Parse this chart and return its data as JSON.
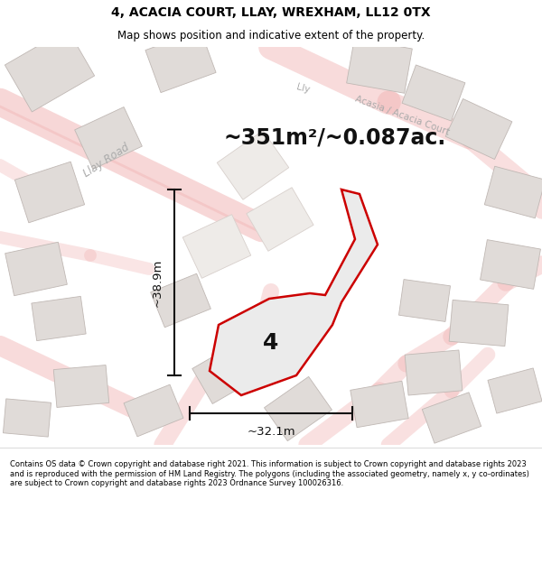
{
  "title_line1": "4, ACACIA COURT, LLAY, WREXHAM, LL12 0TX",
  "title_line2": "Map shows position and indicative extent of the property.",
  "area_text": "~351m²/~0.087ac.",
  "dim_vertical": "~38.9m",
  "dim_horizontal": "~32.1m",
  "plot_label": "4",
  "footer_text": "Contains OS data © Crown copyright and database right 2021. This information is subject to Crown copyright and database rights 2023 and is reproduced with the permission of HM Land Registry. The polygons (including the associated geometry, namely x, y co-ordinates) are subject to Crown copyright and database rights 2023 Ordnance Survey 100026316.",
  "header_bg": "#ffffff",
  "footer_bg": "#ffffff",
  "map_bg": "#f9f7f5",
  "plot_color": "#cc0000",
  "plot_fill": "#ebebeb",
  "road_color": "#f0b0b0",
  "road_outline": "#e8c8c8",
  "building_color": "#e0dbd8",
  "building_outline": "#c0b8b4",
  "road_label_color": "#aaaaaa",
  "dim_line_color": "#111111",
  "area_fontsize": 17,
  "title_fontsize": 10,
  "subtitle_fontsize": 8.5,
  "dim_fontsize": 9.5,
  "plot_label_fontsize": 18,
  "footer_fontsize": 6.0
}
